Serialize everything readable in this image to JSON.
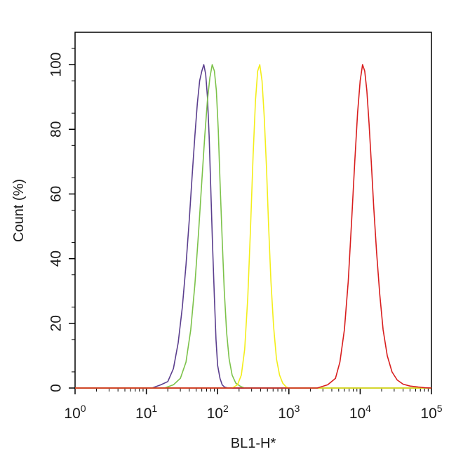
{
  "chart_data": {
    "type": "line",
    "title": "",
    "xlabel": "BL1-H*",
    "ylabel": "Count (%)",
    "xscale": "log",
    "xlim": [
      1,
      100000
    ],
    "ylim": [
      0,
      110
    ],
    "grid": false,
    "legend": "none",
    "x_ticks": [
      {
        "base": "10",
        "exp": "0",
        "value": 1
      },
      {
        "base": "10",
        "exp": "1",
        "value": 10
      },
      {
        "base": "10",
        "exp": "2",
        "value": 100
      },
      {
        "base": "10",
        "exp": "3",
        "value": 1000
      },
      {
        "base": "10",
        "exp": "4",
        "value": 10000
      },
      {
        "base": "10",
        "exp": "5",
        "value": 100000
      }
    ],
    "y_ticks": [
      "0",
      "20",
      "40",
      "60",
      "80",
      "100"
    ],
    "series": [
      {
        "color": "#5b3f8e",
        "x": [
          1,
          12,
          16,
          20,
          24,
          28,
          32,
          36,
          40,
          44,
          48,
          52,
          56,
          60,
          64,
          68,
          72,
          76,
          80,
          85,
          90,
          95,
          100,
          108,
          116,
          125,
          140,
          1000,
          100000
        ],
        "y": [
          0,
          0,
          1,
          2,
          6,
          14,
          25,
          38,
          52,
          66,
          78,
          88,
          95,
          98,
          100,
          97,
          90,
          78,
          62,
          44,
          28,
          15,
          7,
          3,
          1,
          0.3,
          0,
          0,
          0
        ]
      },
      {
        "color": "#7cc24a",
        "x": [
          1,
          18,
          24,
          30,
          36,
          42,
          48,
          54,
          60,
          66,
          72,
          78,
          84,
          90,
          96,
          102,
          108,
          116,
          124,
          134,
          145,
          160,
          180,
          210,
          240,
          1000,
          100000
        ],
        "y": [
          0,
          0,
          1,
          3,
          8,
          18,
          32,
          48,
          64,
          78,
          89,
          96,
          100,
          98,
          92,
          80,
          64,
          46,
          30,
          17,
          9,
          4,
          1.5,
          0.5,
          0,
          0,
          0
        ]
      },
      {
        "color": "#f3ee1a",
        "x": [
          1,
          160,
          190,
          215,
          240,
          265,
          290,
          315,
          340,
          365,
          390,
          420,
          450,
          485,
          520,
          560,
          610,
          670,
          740,
          820,
          920,
          1000,
          100000
        ],
        "y": [
          0,
          0,
          1,
          4,
          12,
          28,
          50,
          72,
          89,
          98,
          100,
          95,
          84,
          68,
          50,
          33,
          19,
          9,
          4,
          1.5,
          0.3,
          0,
          0
        ]
      },
      {
        "color": "#d81e1e",
        "x": [
          1,
          2500,
          3500,
          4500,
          5200,
          6000,
          6800,
          7600,
          8400,
          9200,
          10000,
          10800,
          11600,
          12400,
          13300,
          14300,
          15500,
          17000,
          18800,
          21000,
          24000,
          28000,
          33000,
          40000,
          50000,
          65000,
          80000,
          100000
        ],
        "y": [
          0,
          0,
          1,
          3,
          8,
          18,
          33,
          52,
          70,
          85,
          95,
          100,
          98,
          92,
          82,
          70,
          56,
          42,
          29,
          18,
          10,
          5,
          2.5,
          1.2,
          0.6,
          0.3,
          0.1,
          0
        ]
      }
    ]
  }
}
